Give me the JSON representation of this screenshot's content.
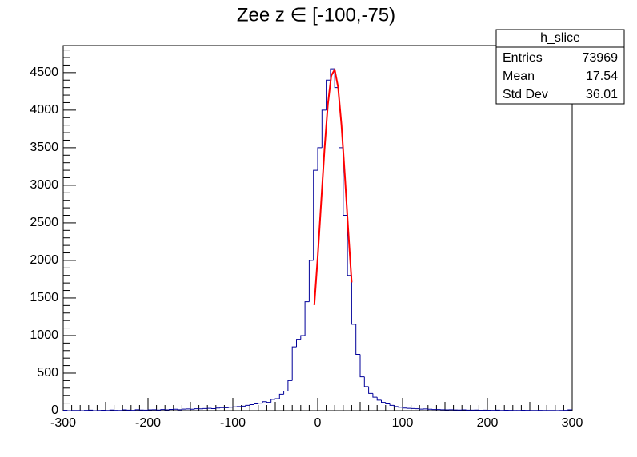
{
  "chart_data": {
    "type": "histogram",
    "title": "Zee z ∈ [-100,-75)",
    "bins": [
      -300,
      -295,
      -290,
      -285,
      -280,
      -275,
      -270,
      -265,
      -260,
      -255,
      -250,
      -245,
      -240,
      -235,
      -230,
      -225,
      -220,
      -215,
      -210,
      -205,
      -200,
      -195,
      -190,
      -185,
      -180,
      -175,
      -170,
      -165,
      -160,
      -155,
      -150,
      -145,
      -140,
      -135,
      -130,
      -125,
      -120,
      -115,
      -110,
      -105,
      -100,
      -95,
      -90,
      -85,
      -80,
      -75,
      -70,
      -65,
      -60,
      -55,
      -50,
      -45,
      -40,
      -35,
      -30,
      -25,
      -20,
      -15,
      -10,
      -5,
      0,
      5,
      10,
      15,
      20,
      25,
      30,
      35,
      40,
      45,
      50,
      55,
      60,
      65,
      70,
      75,
      80,
      85,
      90,
      95,
      100,
      105,
      110,
      115,
      120,
      125,
      130,
      135,
      140,
      145,
      150,
      155,
      160,
      165,
      170,
      175,
      180,
      185,
      190,
      195,
      200,
      205,
      210,
      215,
      220,
      225,
      230,
      235,
      240,
      245,
      250,
      255,
      260,
      265,
      270,
      275,
      280,
      285,
      290,
      295,
      300
    ],
    "values": [
      5,
      0,
      3,
      2,
      0,
      4,
      6,
      0,
      3,
      5,
      2,
      8,
      4,
      3,
      10,
      6,
      4,
      12,
      8,
      6,
      10,
      12,
      8,
      14,
      10,
      16,
      18,
      12,
      20,
      22,
      18,
      25,
      24,
      28,
      30,
      26,
      35,
      40,
      38,
      45,
      50,
      55,
      60,
      70,
      80,
      90,
      100,
      120,
      110,
      150,
      160,
      220,
      260,
      400,
      850,
      950,
      1000,
      1450,
      2000,
      3200,
      3500,
      4000,
      4400,
      4550,
      4300,
      3500,
      2600,
      1800,
      1150,
      750,
      450,
      320,
      230,
      180,
      140,
      110,
      90,
      70,
      55,
      45,
      35,
      30,
      28,
      25,
      20,
      22,
      18,
      15,
      14,
      12,
      10,
      12,
      9,
      8,
      10,
      7,
      6,
      8,
      5,
      6,
      5,
      4,
      6,
      3,
      5,
      4,
      2,
      3,
      5,
      4,
      3,
      2,
      4,
      3,
      2,
      3,
      1,
      2,
      4,
      10
    ],
    "color": "#000099",
    "fit": {
      "color": "#ff0000",
      "x": [
        -4,
        0,
        4,
        8,
        12,
        16,
        20,
        24,
        28,
        32,
        36,
        40
      ],
      "values": [
        1404,
        2040,
        2760,
        3477,
        4080,
        4460,
        4540,
        4304,
        3801,
        3124,
        2395,
        1708
      ]
    },
    "xlim": [
      -300,
      300
    ],
    "xticks": [
      -300,
      -200,
      -100,
      0,
      100,
      200,
      300
    ],
    "ylim": [
      0,
      4860
    ],
    "yticks": [
      0,
      500,
      1000,
      1500,
      2000,
      2500,
      3000,
      3500,
      4000,
      4500
    ],
    "stats": {
      "title": "h_slice",
      "rows": [
        [
          "Entries",
          73969
        ],
        [
          "Mean",
          17.54
        ],
        [
          "Std Dev",
          36.01
        ]
      ]
    }
  }
}
